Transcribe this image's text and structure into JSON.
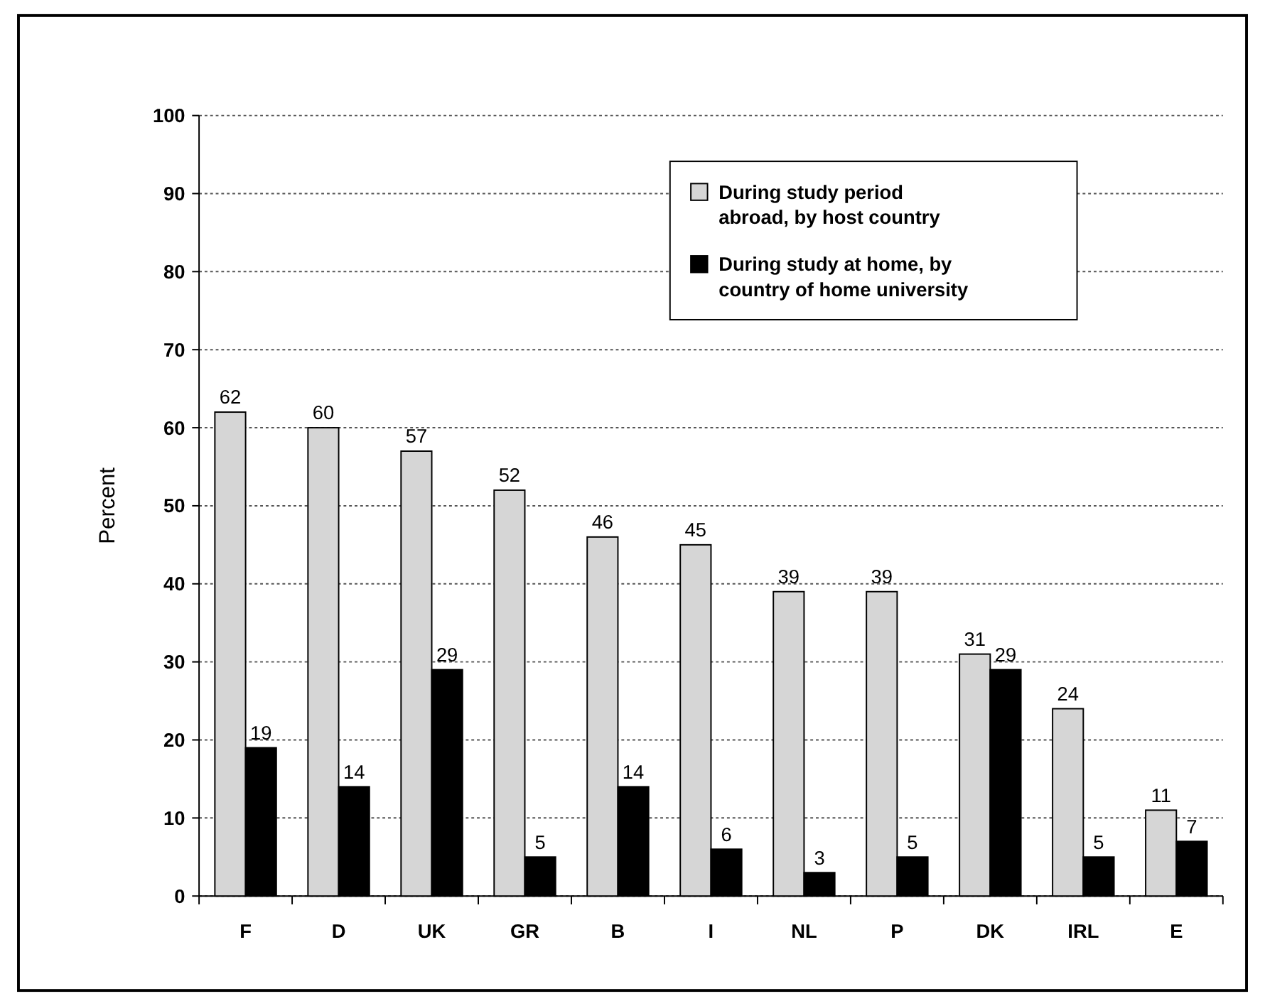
{
  "chart_data": {
    "type": "bar",
    "ylabel": "Percent",
    "categories": [
      "F",
      "D",
      "UK",
      "GR",
      "B",
      "I",
      "NL",
      "P",
      "DK",
      "IRL",
      "E"
    ],
    "series": [
      {
        "name": "During study period abroad, by host country",
        "color": "#d6d6d6",
        "values": [
          62,
          60,
          57,
          52,
          46,
          45,
          39,
          39,
          31,
          24,
          11
        ]
      },
      {
        "name": "During study at home, by country of home university",
        "color": "#000000",
        "values": [
          19,
          14,
          29,
          5,
          14,
          6,
          3,
          5,
          29,
          5,
          7
        ]
      }
    ],
    "ylim": [
      0,
      100
    ],
    "yticks": [
      0,
      10,
      20,
      30,
      40,
      50,
      60,
      70,
      80,
      90,
      100
    ],
    "grid": "y",
    "legend": "top right",
    "data_labels": true
  }
}
